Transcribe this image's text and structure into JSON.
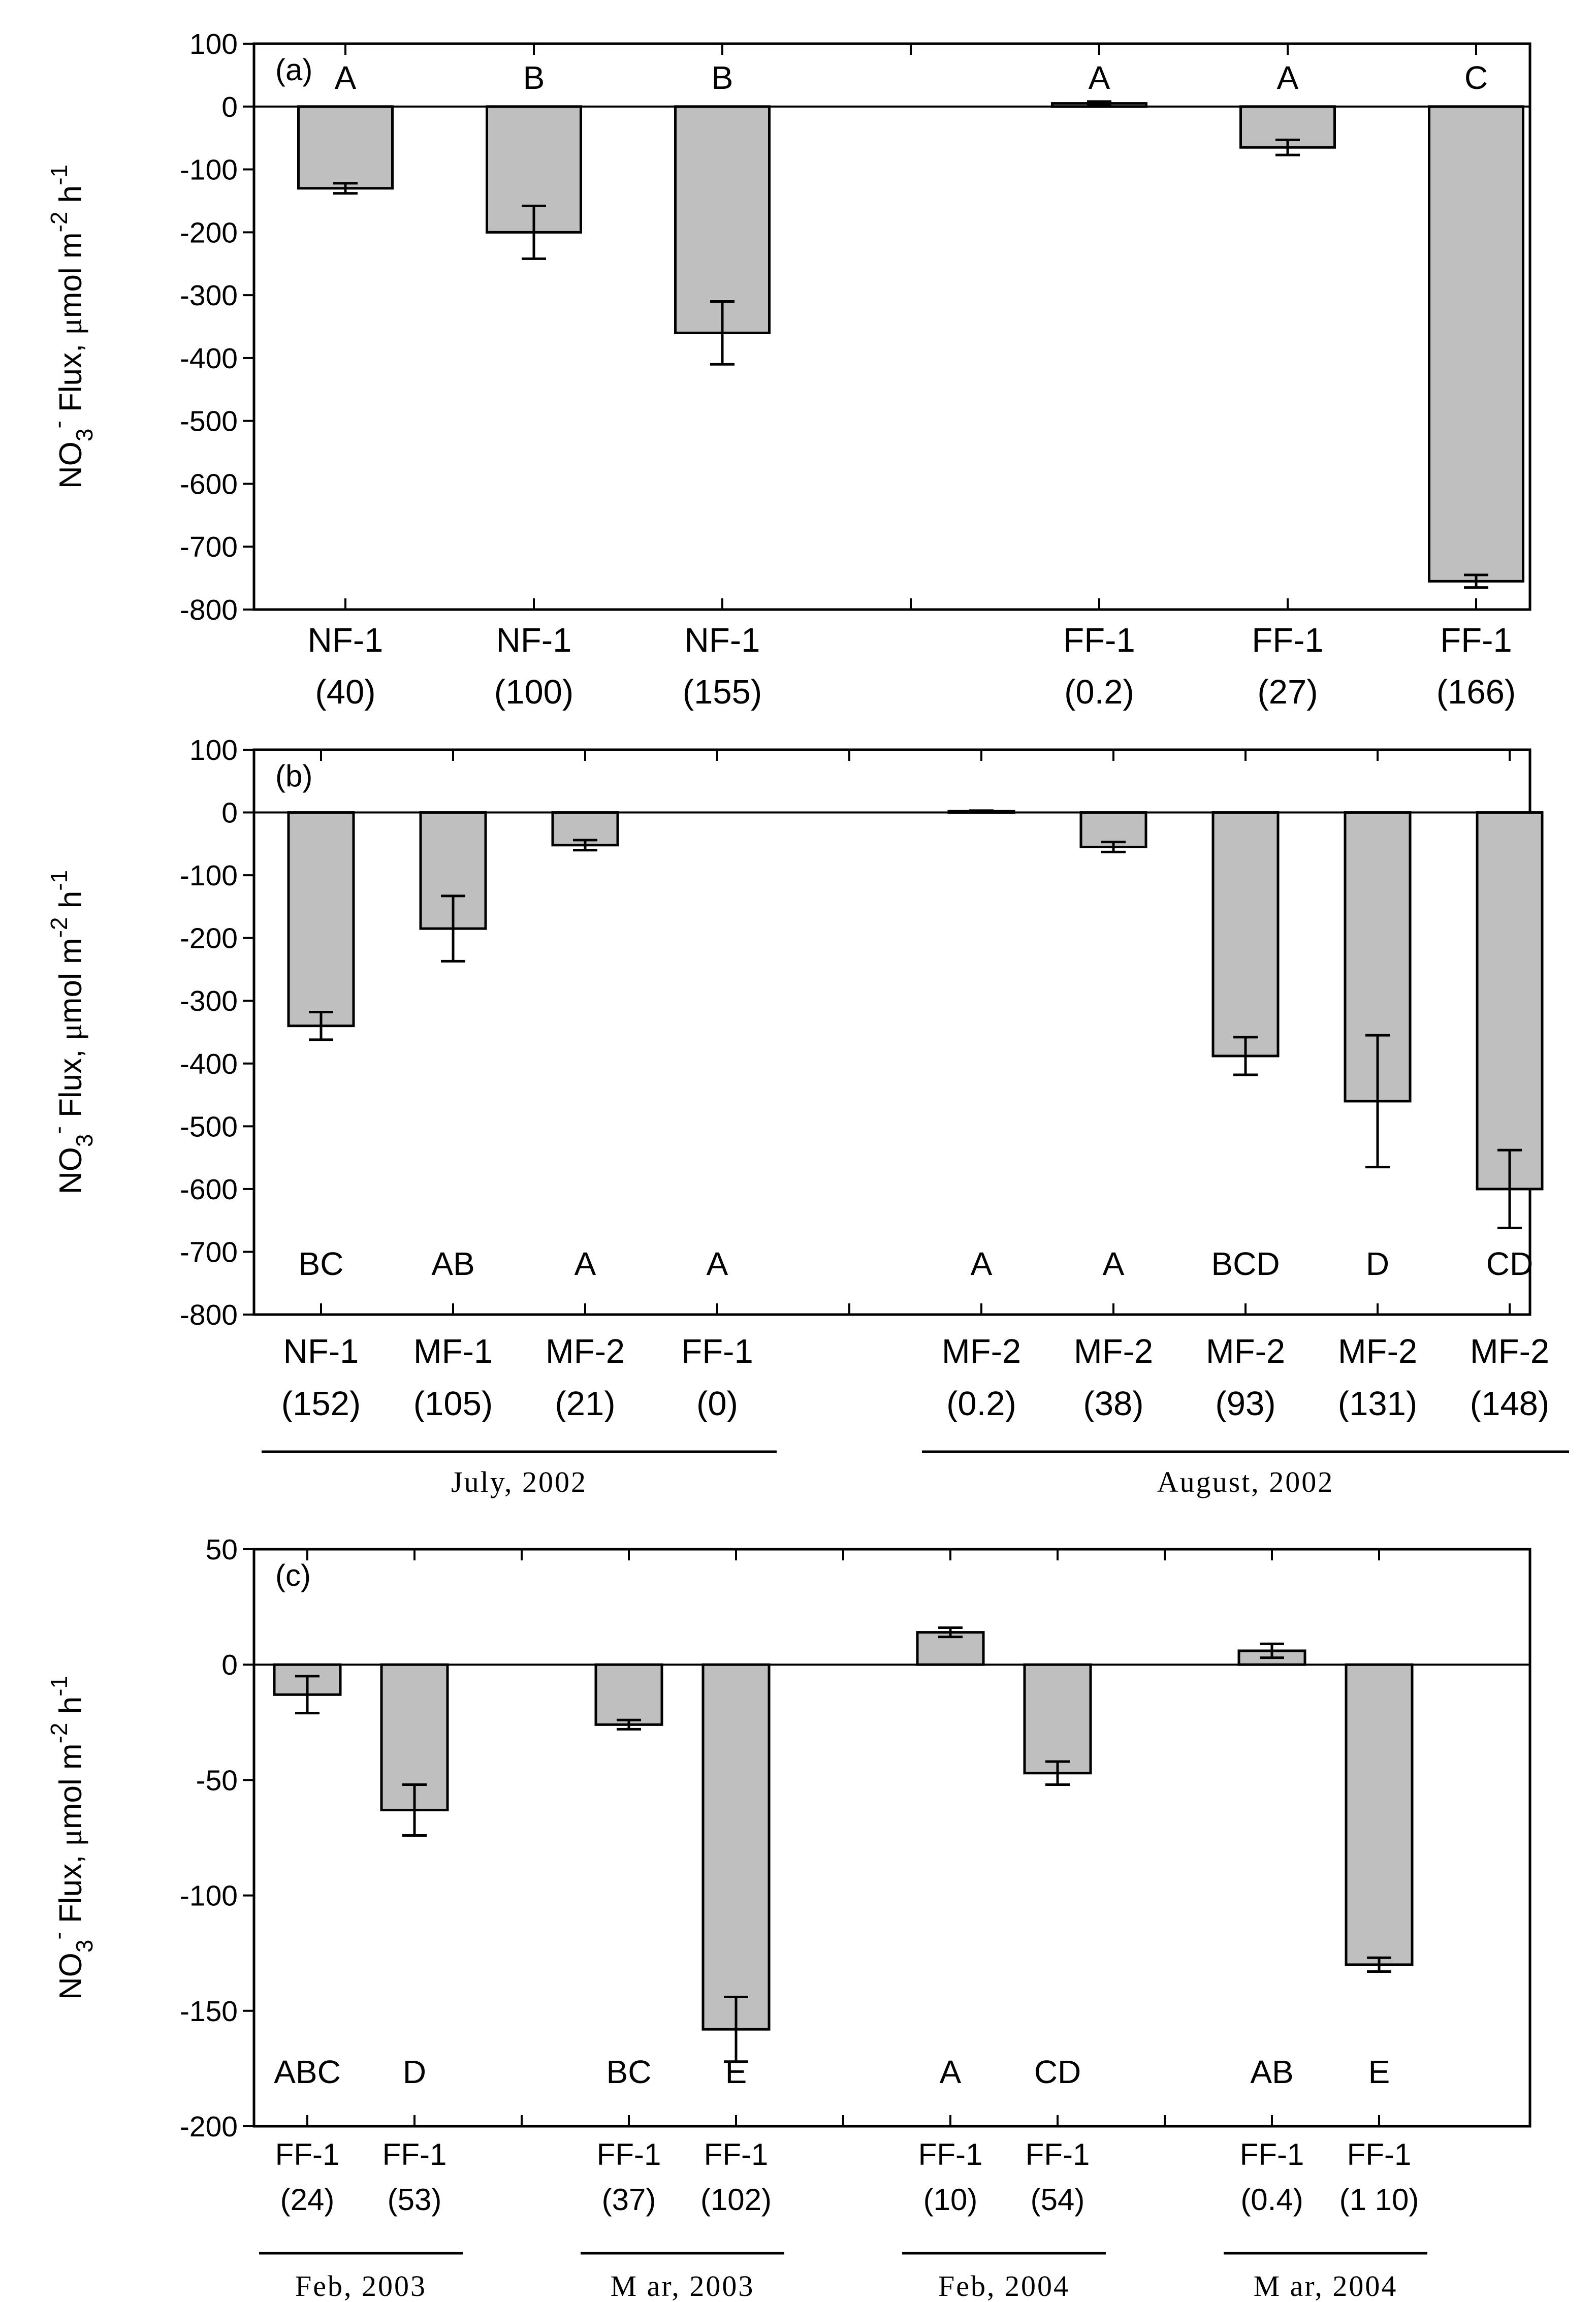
{
  "colors": {
    "bar_fill": "#bfbfbf",
    "stroke": "#000000",
    "background": "#ffffff"
  },
  "y_axis_label": {
    "main": "NO",
    "sub": "3",
    "sup_charge": "-",
    "rest": " Flux, ",
    "mu": "μ",
    "unit": "mol m",
    "sup_m": "-2",
    "h": " h",
    "sup_h": "-1"
  },
  "chart_data": [
    {
      "type": "bar",
      "panel_label": "(a)",
      "ylim": [
        -800,
        100
      ],
      "yticks": [
        100,
        0,
        -100,
        -200,
        -300,
        -400,
        -500,
        -600,
        -700,
        -800
      ],
      "ytick_labels": [
        "100",
        "0",
        "-100",
        "-200",
        "-300",
        "-400",
        "-500",
        "-600",
        "-700",
        "-800"
      ],
      "letters_position": "top",
      "bars": [
        {
          "site": "NF-1",
          "depth": "(40)",
          "value": -130,
          "err": 8,
          "letter": "A",
          "slot": 0
        },
        {
          "site": "NF-1",
          "depth": "(100)",
          "value": -200,
          "err": 42,
          "letter": "B",
          "slot": 1
        },
        {
          "site": "NF-1",
          "depth": "(155)",
          "value": -360,
          "err": 50,
          "letter": "B",
          "slot": 2
        },
        {
          "site": "FF-1",
          "depth": "(0.2)",
          "value": 5,
          "err": 3,
          "letter": "A",
          "slot": 4
        },
        {
          "site": "FF-1",
          "depth": "(27)",
          "value": -65,
          "err": 12,
          "letter": "A",
          "slot": 5
        },
        {
          "site": "FF-1",
          "depth": "(166)",
          "value": -755,
          "err": 10,
          "letter": "C",
          "slot": 6
        }
      ],
      "groups": []
    },
    {
      "type": "bar",
      "panel_label": "(b)",
      "ylim": [
        -800,
        100
      ],
      "yticks": [
        100,
        0,
        -100,
        -200,
        -300,
        -400,
        -500,
        -600,
        -700,
        -800
      ],
      "ytick_labels": [
        "100",
        "0",
        "-100",
        "-200",
        "-300",
        "-400",
        "-500",
        "-600",
        "-700",
        "-800"
      ],
      "letters_position": "bottom",
      "bars": [
        {
          "site": "NF-1",
          "depth": "(152)",
          "value": -340,
          "err": 22,
          "letter": "BC",
          "slot": 0
        },
        {
          "site": "MF-1",
          "depth": "(105)",
          "value": -185,
          "err": 52,
          "letter": "AB",
          "slot": 1
        },
        {
          "site": "MF-2",
          "depth": "(21)",
          "value": -52,
          "err": 8,
          "letter": "A",
          "slot": 2
        },
        {
          "site": "FF-1",
          "depth": "(0)",
          "value": 0,
          "err": 0,
          "letter": "A",
          "slot": 3
        },
        {
          "site": "MF-2",
          "depth": "(0.2)",
          "value": 2,
          "err": 1,
          "letter": "A",
          "slot": 5
        },
        {
          "site": "MF-2",
          "depth": "(38)",
          "value": -55,
          "err": 8,
          "letter": "A",
          "slot": 6
        },
        {
          "site": "MF-2",
          "depth": "(93)",
          "value": -388,
          "err": 30,
          "letter": "BCD",
          "slot": 7
        },
        {
          "site": "MF-2",
          "depth": "(131)",
          "value": -460,
          "err": 105,
          "letter": "D",
          "slot": 8
        },
        {
          "site": "MF-2",
          "depth": "(148)",
          "value": -600,
          "err": 62,
          "letter": "CD",
          "slot": 9
        }
      ],
      "groups": [
        {
          "label": "July, 2002",
          "from_slot": 0,
          "to_slot": 3
        },
        {
          "label": "August, 2002",
          "from_slot": 5,
          "to_slot": 9
        }
      ]
    },
    {
      "type": "bar",
      "panel_label": "(c)",
      "ylim": [
        -200,
        50
      ],
      "yticks": [
        50,
        0,
        -50,
        -100,
        -150,
        -200
      ],
      "ytick_labels": [
        "50",
        "0",
        "-50",
        "-100",
        "-150",
        "-200"
      ],
      "letters_position": "bottom",
      "bars": [
        {
          "site": "FF-1",
          "depth": "(24)",
          "value": -13,
          "err": 8,
          "letter": "ABC",
          "slot": 0
        },
        {
          "site": "FF-1",
          "depth": "(53)",
          "value": -63,
          "err": 11,
          "letter": "D",
          "slot": 1
        },
        {
          "site": "FF-1",
          "depth": "(37)",
          "value": -26,
          "err": 2,
          "letter": "BC",
          "slot": 3
        },
        {
          "site": "FF-1",
          "depth": "(102)",
          "value": -158,
          "err": 14,
          "letter": "E",
          "slot": 4
        },
        {
          "site": "FF-1",
          "depth": "(10)",
          "value": 14,
          "err": 2,
          "letter": "A",
          "slot": 6
        },
        {
          "site": "FF-1",
          "depth": "(54)",
          "value": -47,
          "err": 5,
          "letter": "CD",
          "slot": 7
        },
        {
          "site": "FF-1",
          "depth": "(0.4)",
          "value": 6,
          "err": 3,
          "letter": "AB",
          "slot": 9
        },
        {
          "site": "FF-1",
          "depth": "(1 10)",
          "value": -130,
          "err": 3,
          "letter": "E",
          "slot": 10
        }
      ],
      "groups": [
        {
          "label": "Feb, 2003",
          "from_slot": 0,
          "to_slot": 1
        },
        {
          "label": "M ar, 2003",
          "from_slot": 3,
          "to_slot": 4
        },
        {
          "label": "Feb, 2004",
          "from_slot": 6,
          "to_slot": 7
        },
        {
          "label": "M ar, 2004",
          "from_slot": 9,
          "to_slot": 10
        }
      ]
    }
  ]
}
